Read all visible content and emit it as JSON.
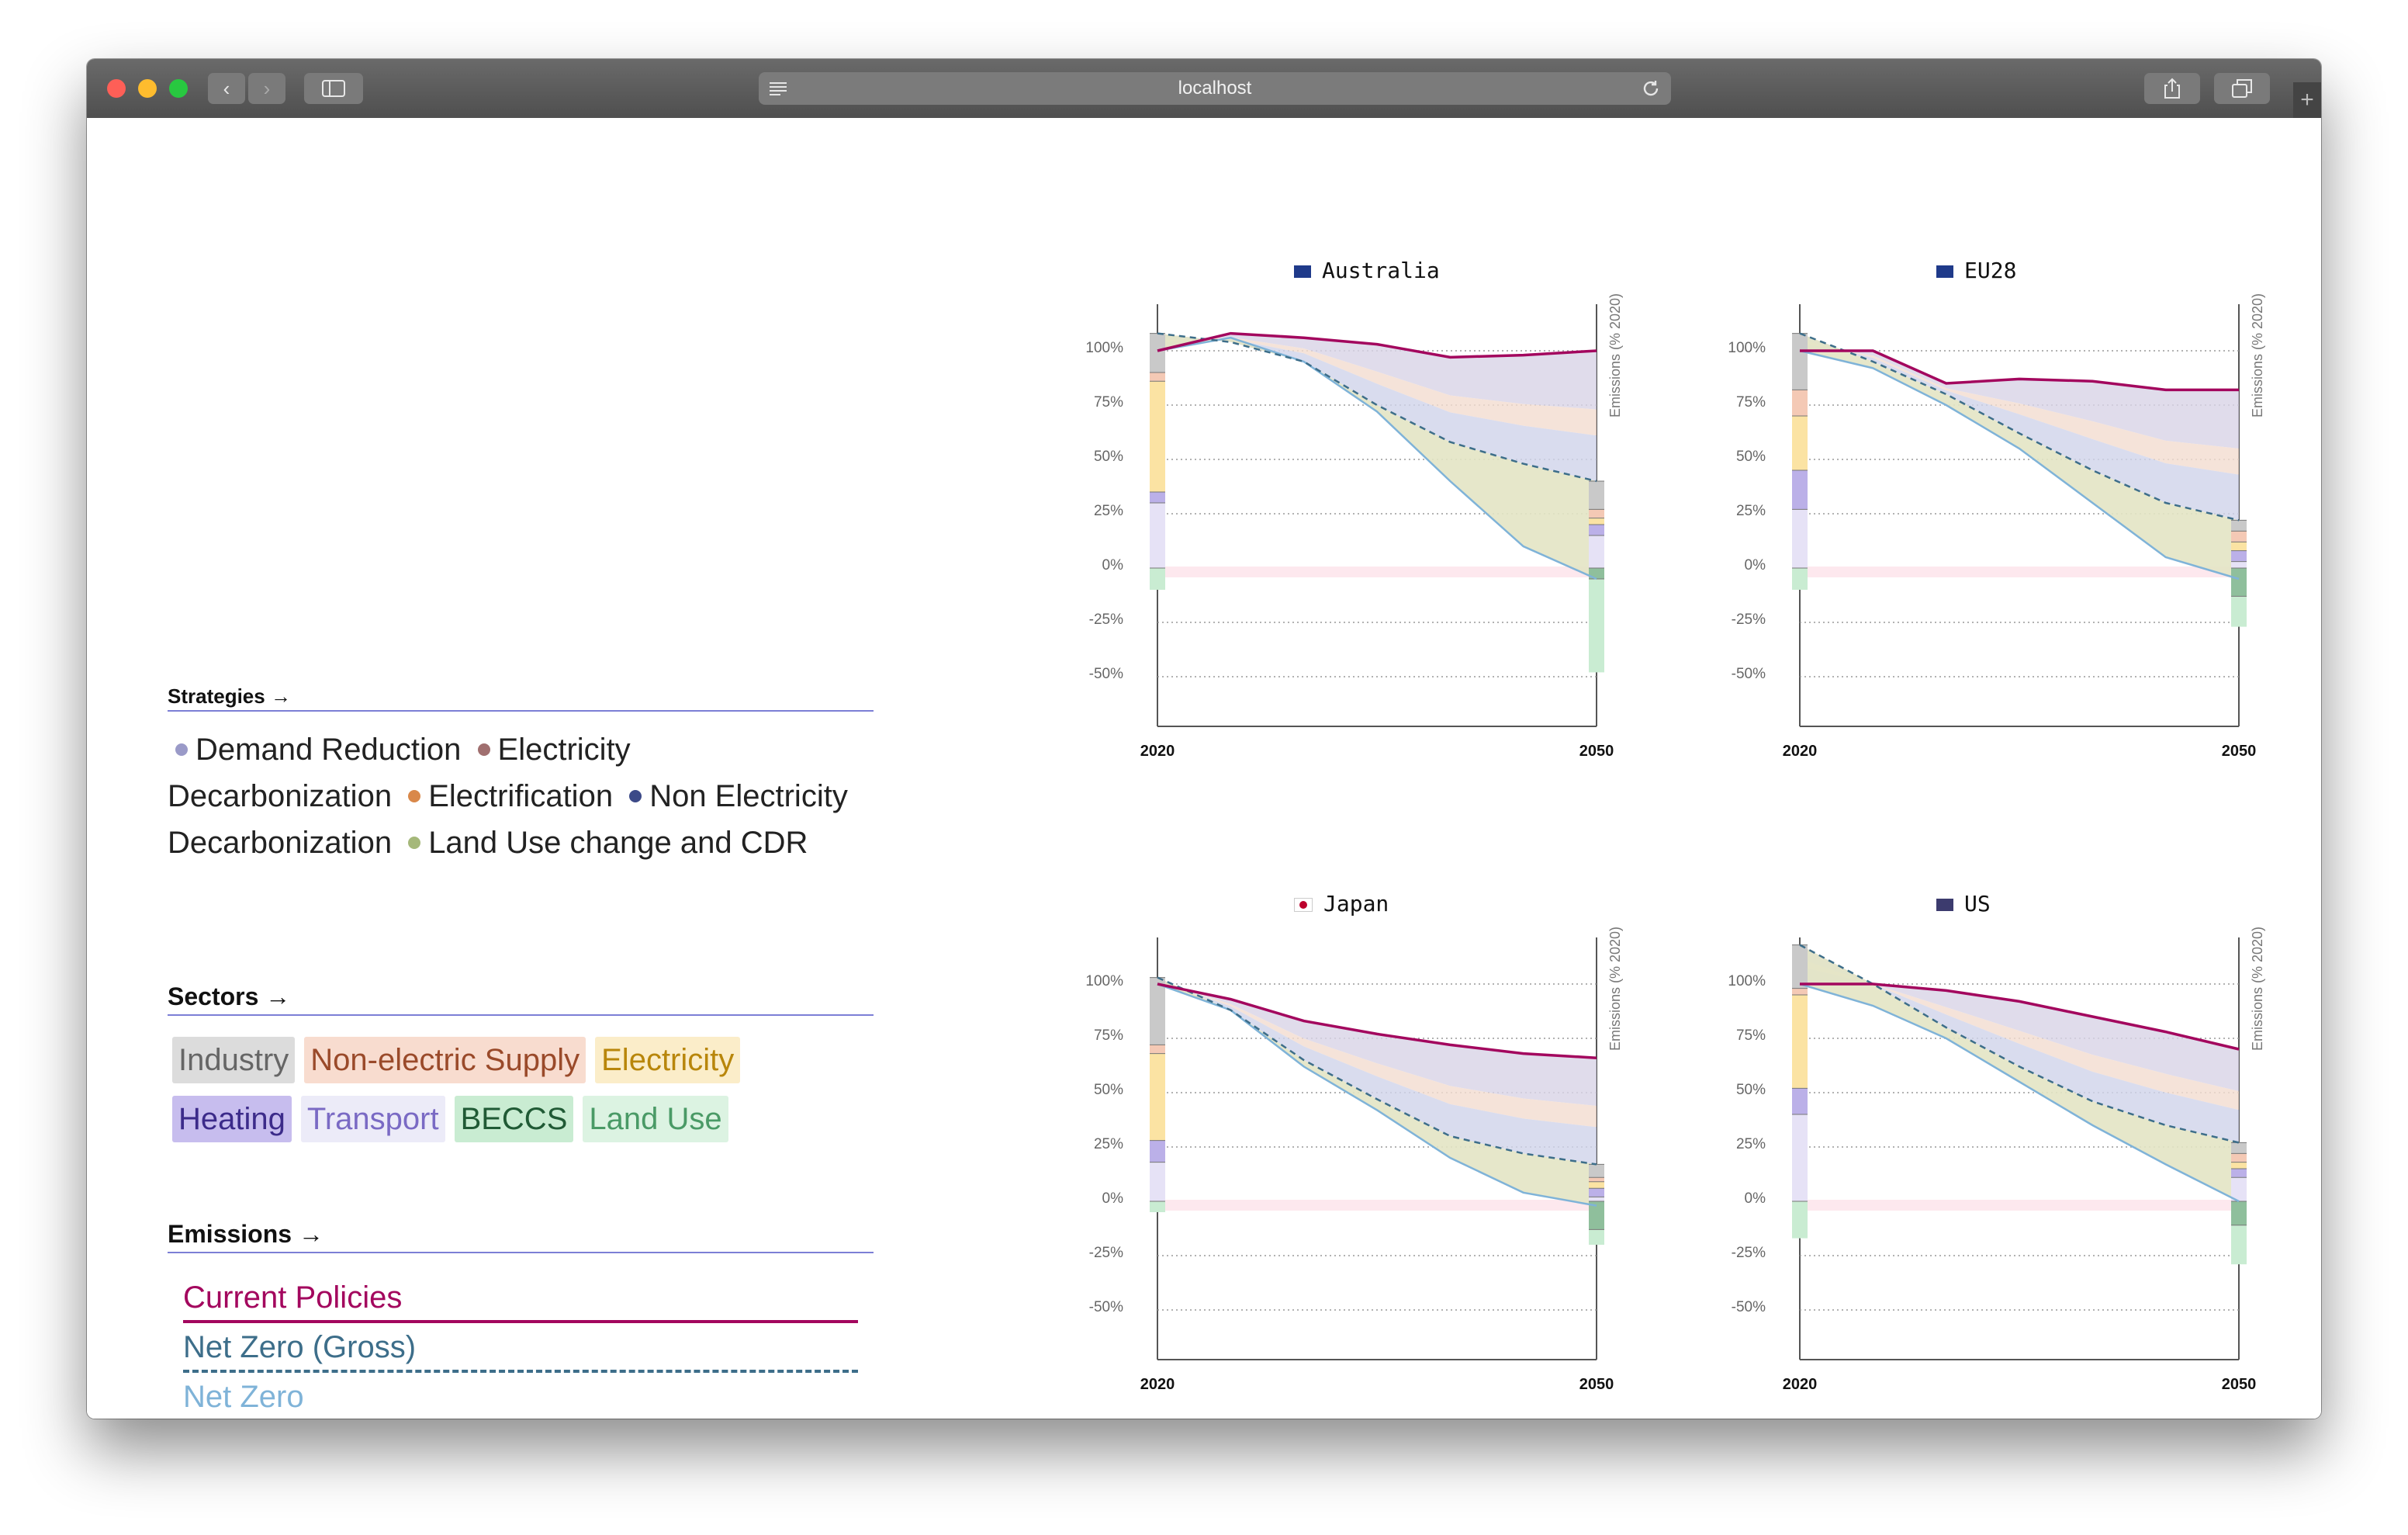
{
  "browser": {
    "url": "localhost"
  },
  "legend": {
    "strategies": {
      "heading": "Strategies →",
      "items": [
        {
          "label": "Demand Reduction",
          "color": "#9a9ac8"
        },
        {
          "label": "Electricity Decarbonization",
          "color": "#a06f6f"
        },
        {
          "label": "Electrification",
          "color": "#d9884a"
        },
        {
          "label": "Non Electricity Decarbonization",
          "color": "#3c4a88"
        },
        {
          "label": "Land Use change and CDR",
          "color": "#a5b87a"
        }
      ]
    },
    "sectors": {
      "heading": "Sectors →",
      "items": [
        {
          "label": "Industry",
          "bg": "#dcdcdc",
          "fg": "#666666"
        },
        {
          "label": "Non-electric Supply",
          "bg": "#f8dccf",
          "fg": "#9a4a2a"
        },
        {
          "label": "Electricity",
          "bg": "#fbedc9",
          "fg": "#b8860b"
        },
        {
          "label": "Heating",
          "bg": "#c7bdee",
          "fg": "#3c2b8a"
        },
        {
          "label": "Transport",
          "bg": "#ecebf8",
          "fg": "#7a6ac4"
        },
        {
          "label": "BECCS",
          "bg": "#c9ecd2",
          "fg": "#205a35"
        },
        {
          "label": "Land Use",
          "bg": "#dcf3e2",
          "fg": "#4a9a66"
        }
      ]
    },
    "emissions": {
      "heading": "Emissions →",
      "items": [
        {
          "label": "Current Policies",
          "color": "#a3075e",
          "style": "solid"
        },
        {
          "label": "Net Zero (Gross)",
          "color": "#3d6e8a",
          "style": "dashed"
        },
        {
          "label": "Net Zero",
          "color": "#7fb3d8",
          "style": "solid"
        }
      ]
    }
  },
  "chart_data": [
    {
      "type": "area",
      "title": "Australia",
      "x_start": "2020",
      "x_end": "2050",
      "ylabel": "Emissions (% 2020)",
      "y_ticks": [
        "100%",
        "75%",
        "50%",
        "25%",
        "0%",
        "-25%",
        "-50%"
      ],
      "ylim": [
        -50,
        100
      ],
      "x": [
        2020,
        2025,
        2030,
        2035,
        2040,
        2045,
        2050
      ],
      "series": [
        {
          "name": "Current Policies",
          "values": [
            100,
            108,
            106,
            103,
            97,
            98,
            100
          ]
        },
        {
          "name": "Net Zero (Gross)",
          "values": [
            108,
            104,
            95,
            75,
            58,
            48,
            40
          ]
        },
        {
          "name": "Net Zero",
          "values": [
            100,
            106,
            95,
            72,
            40,
            10,
            -5
          ]
        }
      ],
      "bar_2020": [
        [
          108,
          90,
          "#c9c9c9"
        ],
        [
          90,
          86,
          "#f4c9b5"
        ],
        [
          86,
          35,
          "#fbe3a3"
        ],
        [
          35,
          30,
          "#bbb0e8"
        ],
        [
          30,
          0,
          "#e6e2f6"
        ],
        [
          0,
          -10,
          "#c9ecd2"
        ]
      ],
      "bar_2050": [
        [
          40,
          27,
          "#c9c9c9"
        ],
        [
          27,
          23,
          "#f4c9b5"
        ],
        [
          23,
          20,
          "#fbe3a3"
        ],
        [
          20,
          15,
          "#bbb0e8"
        ],
        [
          15,
          0,
          "#e6e2f6"
        ],
        [
          0,
          -5,
          "#8fbf9c"
        ],
        [
          -5,
          -48,
          "#c9ecd2"
        ]
      ]
    },
    {
      "type": "area",
      "title": "EU28",
      "x_start": "2020",
      "x_end": "2050",
      "ylabel": "Emissions (% 2020)",
      "y_ticks": [
        "100%",
        "75%",
        "50%",
        "25%",
        "0%",
        "-25%",
        "-50%"
      ],
      "ylim": [
        -50,
        100
      ],
      "x": [
        2020,
        2025,
        2030,
        2035,
        2040,
        2045,
        2050
      ],
      "series": [
        {
          "name": "Current Policies",
          "values": [
            100,
            100,
            85,
            87,
            86,
            82,
            82
          ]
        },
        {
          "name": "Net Zero (Gross)",
          "values": [
            108,
            95,
            80,
            62,
            45,
            30,
            22
          ]
        },
        {
          "name": "Net Zero",
          "values": [
            100,
            92,
            75,
            55,
            30,
            5,
            -5
          ]
        }
      ],
      "bar_2020": [
        [
          108,
          82,
          "#c9c9c9"
        ],
        [
          82,
          70,
          "#f4c9b5"
        ],
        [
          70,
          45,
          "#fbe3a3"
        ],
        [
          45,
          27,
          "#bbb0e8"
        ],
        [
          27,
          0,
          "#e6e2f6"
        ],
        [
          0,
          -10,
          "#c9ecd2"
        ]
      ],
      "bar_2050": [
        [
          22,
          17,
          "#c9c9c9"
        ],
        [
          17,
          12,
          "#f4c9b5"
        ],
        [
          12,
          8,
          "#fbe3a3"
        ],
        [
          8,
          3,
          "#bbb0e8"
        ],
        [
          3,
          0,
          "#e6e2f6"
        ],
        [
          0,
          -13,
          "#8fbf9c"
        ],
        [
          -13,
          -27,
          "#c9ecd2"
        ]
      ]
    },
    {
      "type": "area",
      "title": "Japan",
      "x_start": "2020",
      "x_end": "2050",
      "ylabel": "Emissions (% 2020)",
      "y_ticks": [
        "100%",
        "75%",
        "50%",
        "25%",
        "0%",
        "-25%",
        "-50%"
      ],
      "ylim": [
        -50,
        100
      ],
      "x": [
        2020,
        2025,
        2030,
        2035,
        2040,
        2045,
        2050
      ],
      "series": [
        {
          "name": "Current Policies",
          "values": [
            100,
            93,
            83,
            77,
            72,
            68,
            66
          ]
        },
        {
          "name": "Net Zero (Gross)",
          "values": [
            103,
            88,
            65,
            47,
            30,
            22,
            17
          ]
        },
        {
          "name": "Net Zero",
          "values": [
            100,
            88,
            62,
            42,
            20,
            4,
            -2
          ]
        }
      ],
      "bar_2020": [
        [
          103,
          72,
          "#c9c9c9"
        ],
        [
          72,
          68,
          "#f4c9b5"
        ],
        [
          68,
          28,
          "#fbe3a3"
        ],
        [
          28,
          18,
          "#bbb0e8"
        ],
        [
          18,
          0,
          "#e6e2f6"
        ],
        [
          0,
          -5,
          "#c9ecd2"
        ]
      ],
      "bar_2050": [
        [
          17,
          11,
          "#c9c9c9"
        ],
        [
          11,
          9,
          "#f4c9b5"
        ],
        [
          9,
          6,
          "#fbe3a3"
        ],
        [
          6,
          2,
          "#bbb0e8"
        ],
        [
          2,
          0,
          "#e6e2f6"
        ],
        [
          0,
          -13,
          "#8fbf9c"
        ],
        [
          -13,
          -20,
          "#c9ecd2"
        ]
      ]
    },
    {
      "type": "area",
      "title": "US",
      "x_start": "2020",
      "x_end": "2050",
      "ylabel": "Emissions (% 2020)",
      "y_ticks": [
        "100%",
        "75%",
        "50%",
        "25%",
        "0%",
        "-25%",
        "-50%"
      ],
      "ylim": [
        -50,
        100
      ],
      "x": [
        2020,
        2025,
        2030,
        2035,
        2040,
        2045,
        2050
      ],
      "series": [
        {
          "name": "Current Policies",
          "values": [
            100,
            100,
            97,
            92,
            85,
            78,
            70
          ]
        },
        {
          "name": "Net Zero (Gross)",
          "values": [
            118,
            100,
            80,
            62,
            46,
            35,
            27
          ]
        },
        {
          "name": "Net Zero",
          "values": [
            100,
            90,
            75,
            55,
            35,
            17,
            0
          ]
        }
      ],
      "bar_2020": [
        [
          118,
          98,
          "#c9c9c9"
        ],
        [
          98,
          95,
          "#f4c9b5"
        ],
        [
          95,
          52,
          "#fbe3a3"
        ],
        [
          52,
          40,
          "#bbb0e8"
        ],
        [
          40,
          0,
          "#e6e2f6"
        ],
        [
          0,
          -17,
          "#c9ecd2"
        ]
      ],
      "bar_2050": [
        [
          27,
          22,
          "#c9c9c9"
        ],
        [
          22,
          18,
          "#f4c9b5"
        ],
        [
          18,
          15,
          "#fbe3a3"
        ],
        [
          15,
          11,
          "#bbb0e8"
        ],
        [
          11,
          0,
          "#e6e2f6"
        ],
        [
          0,
          -11,
          "#8fbf9c"
        ],
        [
          -11,
          -29,
          "#c9ecd2"
        ]
      ]
    }
  ]
}
